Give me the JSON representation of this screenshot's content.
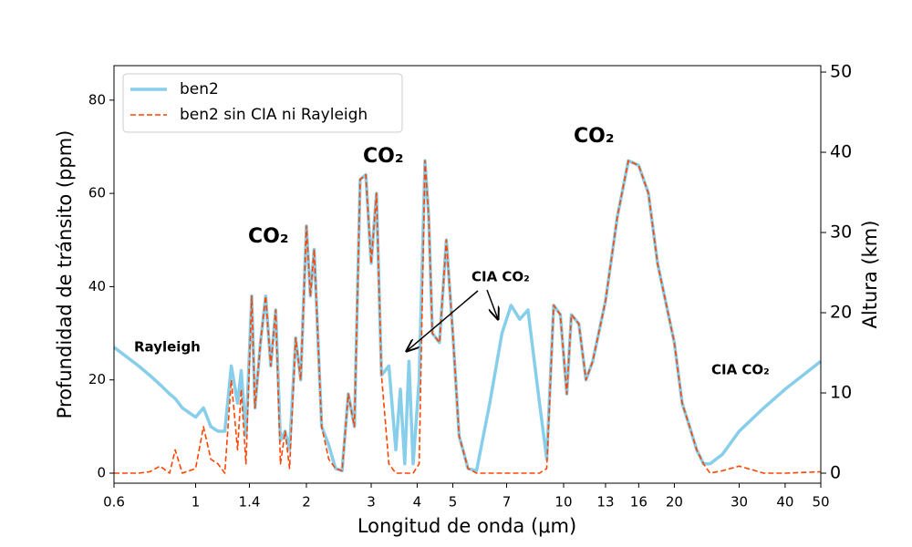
{
  "chart_data": {
    "type": "line",
    "xlabel": "Longitud de onda (μm)",
    "ylabel": "Profundidad de tránsito (ppm)",
    "y2label": "Altura (km)",
    "xscale": "log",
    "xlim": [
      0.6,
      50
    ],
    "xticks": [
      0.6,
      1,
      1.4,
      2,
      3,
      4,
      5,
      7,
      10,
      13,
      16,
      20,
      30,
      40,
      50
    ],
    "ylim": [
      -2.15,
      87.4
    ],
    "yticks": [
      0,
      20,
      40,
      60,
      80
    ],
    "y2lim": [
      -1.25,
      50.8
    ],
    "y2ticks": [
      0,
      10,
      20,
      30,
      40,
      50
    ],
    "legend": "upper left",
    "annotations": [
      "Rayleigh",
      "CO₂",
      "CO₂",
      "CO₂",
      "CIA CO₂",
      "CIA CO₂"
    ],
    "x": [
      0.6,
      0.7,
      0.75,
      0.8,
      0.85,
      0.88,
      0.92,
      1.0,
      1.05,
      1.1,
      1.15,
      1.2,
      1.25,
      1.3,
      1.33,
      1.37,
      1.42,
      1.45,
      1.5,
      1.55,
      1.6,
      1.65,
      1.7,
      1.75,
      1.8,
      1.87,
      1.93,
      2.0,
      2.05,
      2.1,
      2.2,
      2.3,
      2.4,
      2.5,
      2.6,
      2.7,
      2.8,
      2.9,
      3.0,
      3.1,
      3.2,
      3.35,
      3.5,
      3.6,
      3.7,
      3.8,
      3.9,
      4.05,
      4.2,
      4.3,
      4.4,
      4.6,
      4.8,
      5.0,
      5.2,
      5.5,
      5.8,
      6.3,
      6.8,
      7.2,
      7.6,
      8.0,
      8.6,
      9.0,
      9.4,
      9.8,
      10.2,
      10.5,
      11,
      11.5,
      12,
      13,
      14,
      15,
      16,
      17,
      18,
      20,
      21,
      22,
      23,
      24,
      25,
      27,
      30,
      35,
      40,
      50
    ],
    "series": [
      {
        "name": "ben2",
        "color": "#87ceeb",
        "linestyle": "solid",
        "linewidth": 3.5,
        "values": [
          27,
          23,
          21,
          19,
          17,
          16,
          14,
          12,
          14,
          10,
          9,
          9,
          23,
          15,
          22,
          8,
          38,
          14,
          28,
          38,
          23,
          35,
          7,
          9,
          5,
          29,
          20,
          53,
          38,
          48,
          10,
          6,
          1,
          0.5,
          17,
          10,
          63,
          64,
          45,
          60,
          21,
          23,
          5,
          18,
          2,
          24,
          2,
          20,
          67,
          55,
          30,
          28,
          50,
          30,
          8,
          1,
          0.5,
          15,
          30,
          36,
          33,
          35,
          15,
          3,
          36,
          34,
          17,
          34,
          32,
          20,
          24,
          37,
          55,
          67,
          66,
          60,
          45,
          28,
          15,
          10,
          5,
          2,
          2,
          4,
          9,
          14,
          18,
          24
        ]
      },
      {
        "name": "ben2 sin CIA ni Rayleigh",
        "color": "#ff4500",
        "linestyle": "dashed",
        "linewidth": 1.6,
        "values": [
          0,
          0,
          0.3,
          1.5,
          0,
          5,
          0,
          1,
          10,
          3,
          2,
          0,
          20,
          5,
          18,
          2,
          38,
          14,
          28,
          38,
          23,
          35,
          2,
          9,
          1,
          29,
          20,
          53,
          38,
          48,
          10,
          3,
          1,
          0.5,
          17,
          10,
          63,
          64,
          45,
          60,
          21,
          2,
          0,
          0,
          0,
          0,
          0,
          2,
          67,
          55,
          30,
          28,
          50,
          30,
          8,
          1,
          0,
          0,
          0,
          0,
          0,
          0,
          0,
          1,
          36,
          34,
          17,
          34,
          32,
          20,
          24,
          37,
          55,
          67,
          66,
          60,
          45,
          28,
          15,
          10,
          5,
          2,
          0,
          0.5,
          1.5,
          0,
          0,
          0.3
        ]
      }
    ]
  }
}
